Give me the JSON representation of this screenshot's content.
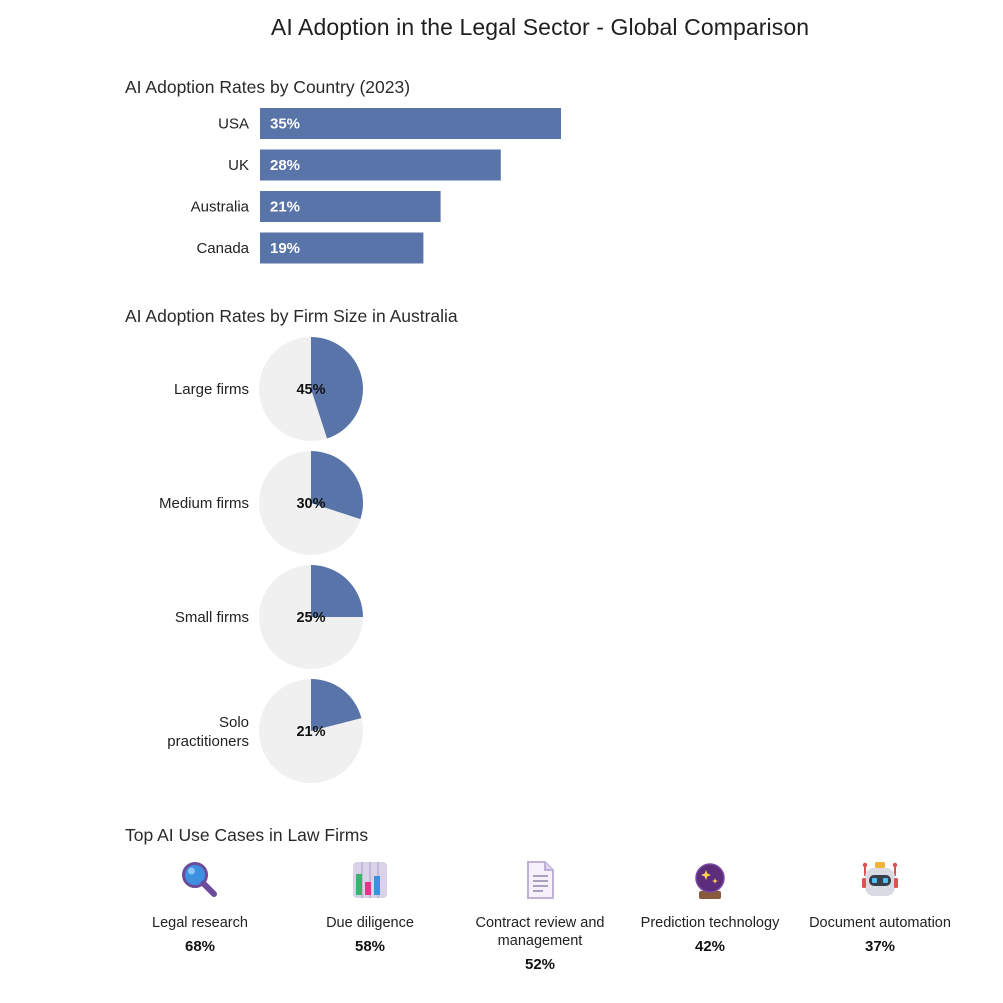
{
  "title": "AI Adoption in the Legal Sector - Global Comparison",
  "colors": {
    "bar": "#5874a8",
    "pie_fill": "#5874a8",
    "pie_background": "#f0f0f0"
  },
  "bar_section": {
    "title": "AI Adoption Rates by Country (2023)"
  },
  "pie_section": {
    "title": "AI Adoption Rates by Firm Size in Australia"
  },
  "use_cases_section": {
    "title": "Top AI Use Cases in Law Firms",
    "items": [
      {
        "label": "Legal research",
        "value": "68%",
        "icon": "magnifying-glass-icon"
      },
      {
        "label": "Due diligence",
        "value": "58%",
        "icon": "bar-chart-icon"
      },
      {
        "label": "Contract review and management",
        "value": "52%",
        "icon": "document-icon"
      },
      {
        "label": "Prediction technology",
        "value": "42%",
        "icon": "crystal-ball-icon"
      },
      {
        "label": "Document automation",
        "value": "37%",
        "icon": "robot-icon"
      }
    ]
  },
  "chart_data": [
    {
      "type": "bar",
      "orientation": "horizontal",
      "title": "AI Adoption Rates by Country (2023)",
      "categories": [
        "USA",
        "UK",
        "Australia",
        "Canada"
      ],
      "values": [
        35,
        28,
        21,
        19
      ],
      "value_labels": [
        "35%",
        "28%",
        "21%",
        "19%"
      ],
      "unit": "%",
      "grid": false
    },
    {
      "type": "pie",
      "title": "AI Adoption Rates by Firm Size in Australia",
      "categories": [
        "Large firms",
        "Medium firms",
        "Small firms",
        "Solo practitioners"
      ],
      "values": [
        45,
        30,
        25,
        21
      ],
      "value_labels": [
        "45%",
        "30%",
        "25%",
        "21%"
      ],
      "unit": "%"
    },
    {
      "type": "table",
      "title": "Top AI Use Cases in Law Firms",
      "categories": [
        "Legal research",
        "Due diligence",
        "Contract review and management",
        "Prediction technology",
        "Document automation"
      ],
      "values": [
        68,
        58,
        52,
        42,
        37
      ],
      "unit": "%"
    }
  ]
}
